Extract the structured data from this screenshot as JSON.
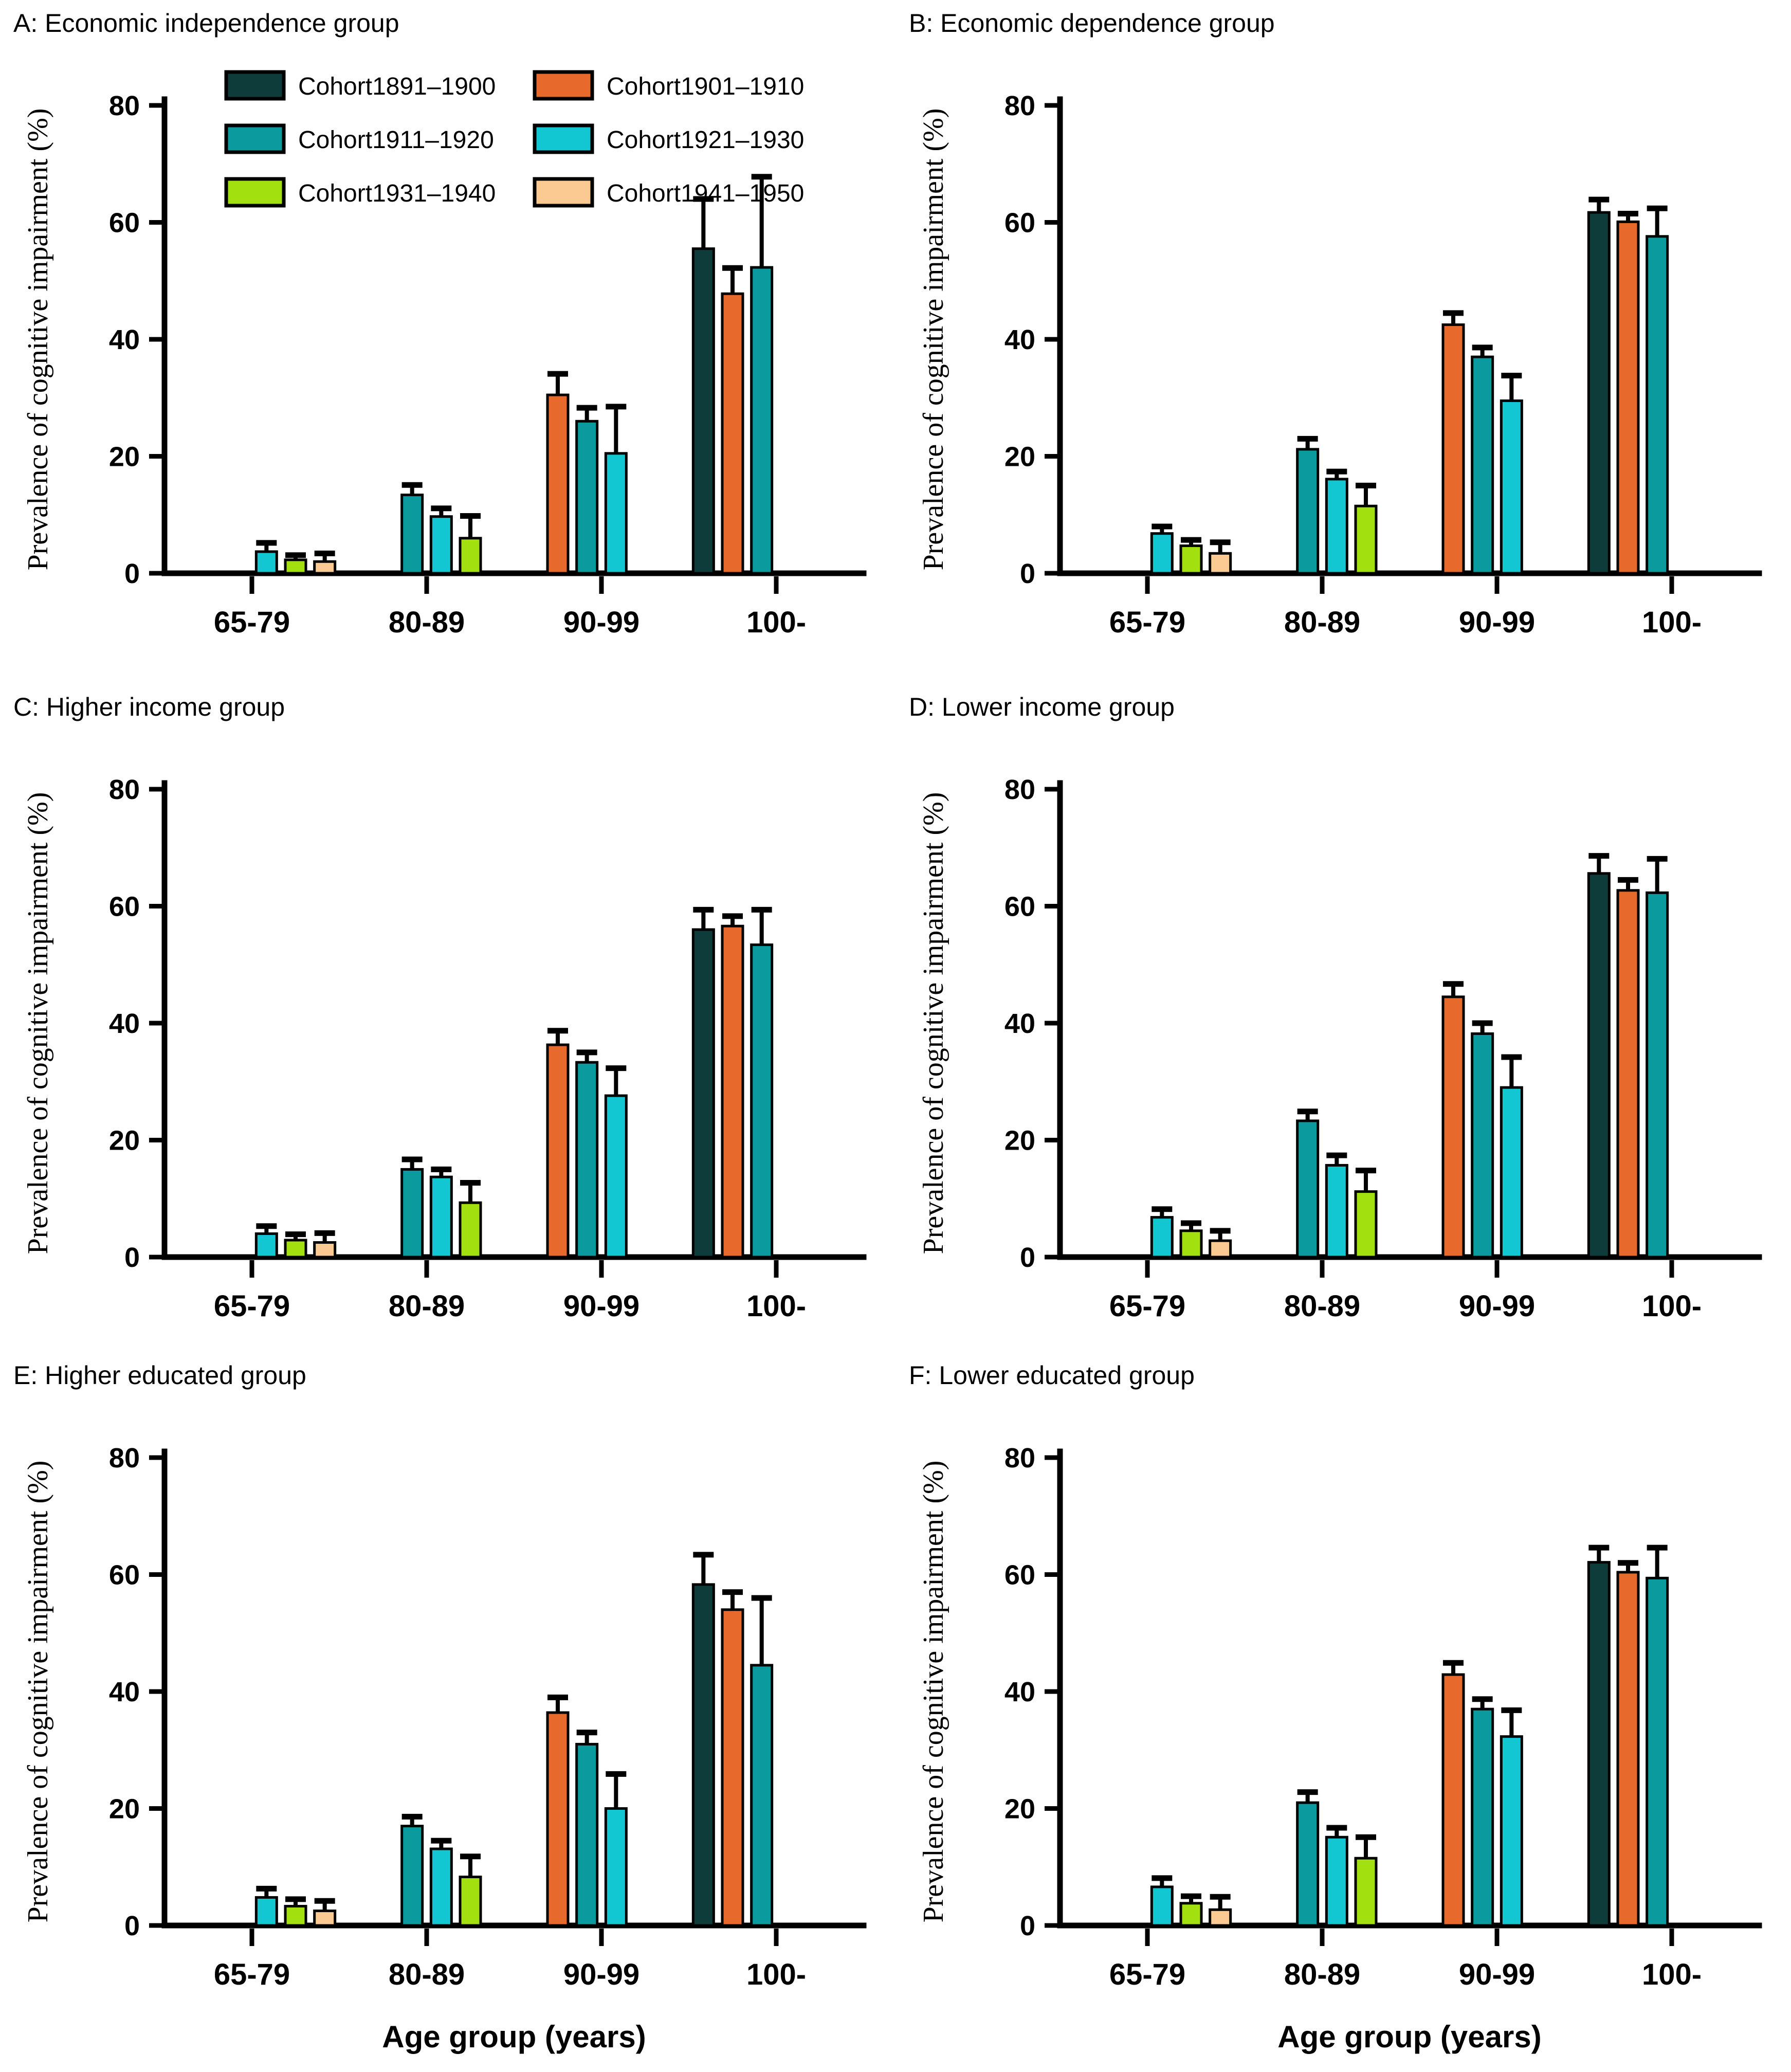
{
  "figure": {
    "y_axis_label": "Prevalence of cognitive impairment (%)",
    "x_axis_label": "Age group (years)",
    "y_ticks": [
      0,
      20,
      40,
      60,
      80
    ],
    "y_max": 80,
    "categories": [
      "65-79",
      "80-89",
      "90-99",
      "100-"
    ],
    "legend_position": "top-left of panel A",
    "grid": false,
    "cohorts": [
      {
        "name": "Cohort1891–1900",
        "color": "#0d3c3a"
      },
      {
        "name": "Cohort1901–1910",
        "color": "#e76a2c"
      },
      {
        "name": "Cohort1911–1920",
        "color": "#0b9b9e"
      },
      {
        "name": "Cohort1921–1930",
        "color": "#12c7d2"
      },
      {
        "name": "Cohort1931–1940",
        "color": "#a2e010"
      },
      {
        "name": "Cohort1941–1950",
        "color": "#fbca92"
      }
    ]
  },
  "chart_data": [
    {
      "id": "A",
      "type": "bar",
      "title": "A: Economic independence group",
      "ylabel": "Prevalence of cognitive impairment (%)",
      "ylim": [
        0,
        80
      ],
      "legend": true,
      "show_xlabel": false,
      "groups": [
        {
          "category": "65-79",
          "bars": [
            {
              "cohort": "Cohort1921–1930",
              "value": 3.7,
              "err": 1.5
            },
            {
              "cohort": "Cohort1931–1940",
              "value": 2.3,
              "err": 0.8
            },
            {
              "cohort": "Cohort1941–1950",
              "value": 2.0,
              "err": 1.4
            }
          ]
        },
        {
          "category": "80-89",
          "bars": [
            {
              "cohort": "Cohort1911–1920",
              "value": 13.4,
              "err": 1.7
            },
            {
              "cohort": "Cohort1921–1930",
              "value": 9.7,
              "err": 1.4
            },
            {
              "cohort": "Cohort1931–1940",
              "value": 6.0,
              "err": 3.8
            }
          ]
        },
        {
          "category": "90-99",
          "bars": [
            {
              "cohort": "Cohort1901–1910",
              "value": 30.5,
              "err": 3.6
            },
            {
              "cohort": "Cohort1911–1920",
              "value": 26.0,
              "err": 2.3
            },
            {
              "cohort": "Cohort1921–1930",
              "value": 20.5,
              "err": 8.0
            }
          ]
        },
        {
          "category": "100-",
          "bars": [
            {
              "cohort": "Cohort1891–1900",
              "value": 55.5,
              "err": 8.5
            },
            {
              "cohort": "Cohort1901–1910",
              "value": 47.8,
              "err": 4.4
            },
            {
              "cohort": "Cohort1911–1920",
              "value": 52.3,
              "err": 15.5
            }
          ]
        }
      ]
    },
    {
      "id": "B",
      "type": "bar",
      "title": "B: Economic dependence group",
      "ylabel": "Prevalence of cognitive impairment (%)",
      "ylim": [
        0,
        80
      ],
      "legend": false,
      "show_xlabel": false,
      "groups": [
        {
          "category": "65-79",
          "bars": [
            {
              "cohort": "Cohort1921–1930",
              "value": 6.8,
              "err": 1.2
            },
            {
              "cohort": "Cohort1931–1940",
              "value": 4.7,
              "err": 1.0
            },
            {
              "cohort": "Cohort1941–1950",
              "value": 3.4,
              "err": 1.9
            }
          ]
        },
        {
          "category": "80-89",
          "bars": [
            {
              "cohort": "Cohort1911–1920",
              "value": 21.2,
              "err": 1.8
            },
            {
              "cohort": "Cohort1921–1930",
              "value": 16.1,
              "err": 1.3
            },
            {
              "cohort": "Cohort1931–1940",
              "value": 11.5,
              "err": 3.5
            }
          ]
        },
        {
          "category": "90-99",
          "bars": [
            {
              "cohort": "Cohort1901–1910",
              "value": 42.5,
              "err": 2.0
            },
            {
              "cohort": "Cohort1911–1920",
              "value": 37.0,
              "err": 1.6
            },
            {
              "cohort": "Cohort1921–1930",
              "value": 29.5,
              "err": 4.3
            }
          ]
        },
        {
          "category": "100-",
          "bars": [
            {
              "cohort": "Cohort1891–1900",
              "value": 61.7,
              "err": 2.2
            },
            {
              "cohort": "Cohort1901–1910",
              "value": 60.1,
              "err": 1.4
            },
            {
              "cohort": "Cohort1911–1920",
              "value": 57.6,
              "err": 4.8
            }
          ]
        }
      ]
    },
    {
      "id": "C",
      "type": "bar",
      "title": "C: Higher income group",
      "ylabel": "Prevalence of cognitive impairment (%)",
      "ylim": [
        0,
        80
      ],
      "legend": false,
      "show_xlabel": false,
      "groups": [
        {
          "category": "65-79",
          "bars": [
            {
              "cohort": "Cohort1921–1930",
              "value": 4.0,
              "err": 1.3
            },
            {
              "cohort": "Cohort1931–1940",
              "value": 2.9,
              "err": 1.0
            },
            {
              "cohort": "Cohort1941–1950",
              "value": 2.5,
              "err": 1.6
            }
          ]
        },
        {
          "category": "80-89",
          "bars": [
            {
              "cohort": "Cohort1911–1920",
              "value": 15.0,
              "err": 1.7
            },
            {
              "cohort": "Cohort1921–1930",
              "value": 13.7,
              "err": 1.3
            },
            {
              "cohort": "Cohort1931–1940",
              "value": 9.3,
              "err": 3.4
            }
          ]
        },
        {
          "category": "90-99",
          "bars": [
            {
              "cohort": "Cohort1901–1910",
              "value": 36.3,
              "err": 2.4
            },
            {
              "cohort": "Cohort1911–1920",
              "value": 33.3,
              "err": 1.7
            },
            {
              "cohort": "Cohort1921–1930",
              "value": 27.6,
              "err": 4.7
            }
          ]
        },
        {
          "category": "100-",
          "bars": [
            {
              "cohort": "Cohort1891–1900",
              "value": 56.0,
              "err": 3.4
            },
            {
              "cohort": "Cohort1901–1910",
              "value": 56.6,
              "err": 1.7
            },
            {
              "cohort": "Cohort1911–1920",
              "value": 53.4,
              "err": 6.0
            }
          ]
        }
      ]
    },
    {
      "id": "D",
      "type": "bar",
      "title": "D: Lower income group",
      "ylabel": "Prevalence of cognitive impairment (%)",
      "ylim": [
        0,
        80
      ],
      "legend": false,
      "show_xlabel": false,
      "groups": [
        {
          "category": "65-79",
          "bars": [
            {
              "cohort": "Cohort1921–1930",
              "value": 6.8,
              "err": 1.4
            },
            {
              "cohort": "Cohort1931–1940",
              "value": 4.5,
              "err": 1.3
            },
            {
              "cohort": "Cohort1941–1950",
              "value": 2.8,
              "err": 1.7
            }
          ]
        },
        {
          "category": "80-89",
          "bars": [
            {
              "cohort": "Cohort1911–1920",
              "value": 23.3,
              "err": 1.6
            },
            {
              "cohort": "Cohort1921–1930",
              "value": 15.7,
              "err": 1.7
            },
            {
              "cohort": "Cohort1931–1940",
              "value": 11.2,
              "err": 3.6
            }
          ]
        },
        {
          "category": "90-99",
          "bars": [
            {
              "cohort": "Cohort1901–1910",
              "value": 44.5,
              "err": 2.2
            },
            {
              "cohort": "Cohort1911–1920",
              "value": 38.2,
              "err": 1.8
            },
            {
              "cohort": "Cohort1921–1930",
              "value": 29.0,
              "err": 5.2
            }
          ]
        },
        {
          "category": "100-",
          "bars": [
            {
              "cohort": "Cohort1891–1900",
              "value": 65.6,
              "err": 3.0
            },
            {
              "cohort": "Cohort1901–1910",
              "value": 62.7,
              "err": 1.8
            },
            {
              "cohort": "Cohort1911–1920",
              "value": 62.3,
              "err": 5.8
            }
          ]
        }
      ]
    },
    {
      "id": "E",
      "type": "bar",
      "title": "E: Higher educated group",
      "ylabel": "Prevalence of cognitive impairment (%)",
      "ylim": [
        0,
        80
      ],
      "legend": false,
      "show_xlabel": true,
      "xlabel": "Age group (years)",
      "groups": [
        {
          "category": "65-79",
          "bars": [
            {
              "cohort": "Cohort1921–1930",
              "value": 4.8,
              "err": 1.5
            },
            {
              "cohort": "Cohort1931–1940",
              "value": 3.3,
              "err": 1.2
            },
            {
              "cohort": "Cohort1941–1950",
              "value": 2.5,
              "err": 1.7
            }
          ]
        },
        {
          "category": "80-89",
          "bars": [
            {
              "cohort": "Cohort1911–1920",
              "value": 17.0,
              "err": 1.6
            },
            {
              "cohort": "Cohort1921–1930",
              "value": 13.1,
              "err": 1.4
            },
            {
              "cohort": "Cohort1931–1940",
              "value": 8.3,
              "err": 3.5
            }
          ]
        },
        {
          "category": "90-99",
          "bars": [
            {
              "cohort": "Cohort1901–1910",
              "value": 36.4,
              "err": 2.6
            },
            {
              "cohort": "Cohort1911–1920",
              "value": 31.0,
              "err": 2.0
            },
            {
              "cohort": "Cohort1921–1930",
              "value": 20.0,
              "err": 5.9
            }
          ]
        },
        {
          "category": "100-",
          "bars": [
            {
              "cohort": "Cohort1891–1900",
              "value": 58.3,
              "err": 5.1
            },
            {
              "cohort": "Cohort1901–1910",
              "value": 54.0,
              "err": 3.0
            },
            {
              "cohort": "Cohort1911–1920",
              "value": 44.5,
              "err": 11.5
            }
          ]
        }
      ]
    },
    {
      "id": "F",
      "type": "bar",
      "title": "F: Lower educated group",
      "ylabel": "Prevalence of cognitive impairment (%)",
      "ylim": [
        0,
        80
      ],
      "legend": false,
      "show_xlabel": true,
      "xlabel": "Age group (years)",
      "groups": [
        {
          "category": "65-79",
          "bars": [
            {
              "cohort": "Cohort1921–1930",
              "value": 6.6,
              "err": 1.5
            },
            {
              "cohort": "Cohort1931–1940",
              "value": 3.8,
              "err": 1.2
            },
            {
              "cohort": "Cohort1941–1950",
              "value": 2.7,
              "err": 2.2
            }
          ]
        },
        {
          "category": "80-89",
          "bars": [
            {
              "cohort": "Cohort1911–1920",
              "value": 21.0,
              "err": 1.8
            },
            {
              "cohort": "Cohort1921–1930",
              "value": 15.1,
              "err": 1.6
            },
            {
              "cohort": "Cohort1931–1940",
              "value": 11.5,
              "err": 3.6
            }
          ]
        },
        {
          "category": "90-99",
          "bars": [
            {
              "cohort": "Cohort1901–1910",
              "value": 42.9,
              "err": 2.0
            },
            {
              "cohort": "Cohort1911–1920",
              "value": 37.0,
              "err": 1.7
            },
            {
              "cohort": "Cohort1921–1930",
              "value": 32.3,
              "err": 4.5
            }
          ]
        },
        {
          "category": "100-",
          "bars": [
            {
              "cohort": "Cohort1891–1900",
              "value": 62.1,
              "err": 2.5
            },
            {
              "cohort": "Cohort1901–1910",
              "value": 60.4,
              "err": 1.6
            },
            {
              "cohort": "Cohort1911–1920",
              "value": 59.4,
              "err": 5.2
            }
          ]
        }
      ]
    }
  ]
}
